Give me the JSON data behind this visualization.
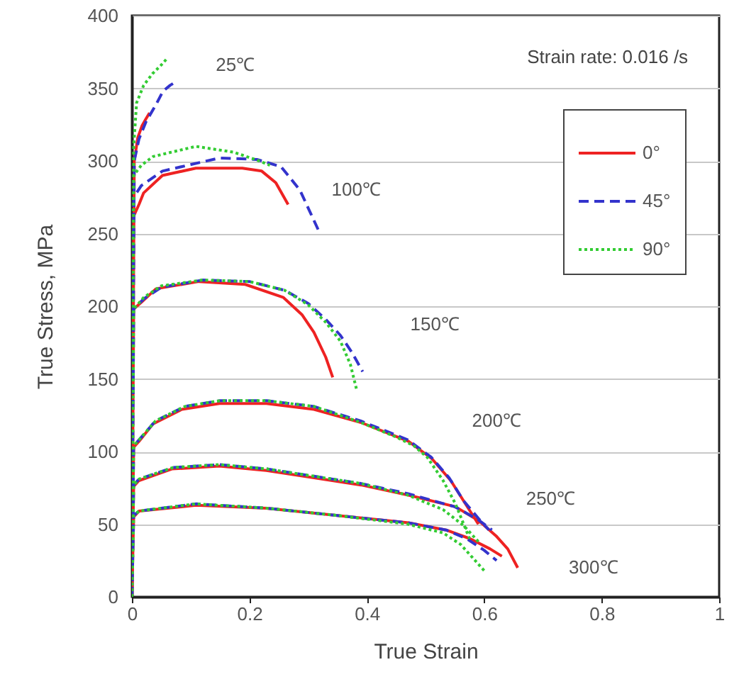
{
  "chart_data": {
    "type": "line",
    "xlabel": "True Strain",
    "ylabel": "True Stress, MPa",
    "xlim": [
      0,
      1
    ],
    "ylim": [
      0,
      400
    ],
    "xticks": [
      0,
      0.2,
      0.4,
      0.6,
      0.8,
      1
    ],
    "yticks": [
      0,
      50,
      100,
      150,
      200,
      250,
      300,
      350,
      400
    ],
    "grid": "y",
    "legend": "top right",
    "annotations": [
      "Strain rate: 0.016 /s",
      "25℃",
      "100℃",
      "150℃",
      "200℃",
      "250℃",
      "300℃"
    ],
    "series": [
      {
        "name": "0°",
        "color": "#ee2222",
        "line_style": "solid",
        "x": [
          0,
          0.004,
          0.01,
          0.017,
          0.024,
          0.03,
          null,
          0,
          0.003,
          0.012,
          0.02,
          0.052,
          0.109,
          0.188,
          0.221,
          0.245,
          0.266,
          null,
          0,
          0.003,
          0.017,
          0.041,
          0.114,
          0.193,
          0.258,
          0.29,
          0.31,
          0.33,
          0.342,
          null,
          0,
          0.003,
          0.012,
          0.036,
          0.085,
          0.149,
          0.229,
          0.31,
          0.39,
          0.471,
          0.511,
          0.543,
          0.568,
          0.59,
          null,
          0,
          0.003,
          0.012,
          0.068,
          0.149,
          0.229,
          0.31,
          0.39,
          0.471,
          0.551,
          0.592,
          0.62,
          0.64,
          0.657,
          null,
          0,
          0.003,
          0.012,
          0.109,
          0.229,
          0.35,
          0.471,
          0.535,
          0.576,
          0.61,
          0.63
        ],
        "values": [
          0,
          300,
          316,
          324,
          329,
          333,
          null,
          0,
          262,
          270,
          278,
          290,
          295,
          295,
          293,
          285,
          270,
          null,
          0,
          198,
          203,
          212,
          217,
          215,
          206,
          194,
          182,
          165,
          151,
          null,
          0,
          103,
          107,
          119,
          129,
          133,
          133,
          129,
          120,
          107,
          95,
          80,
          64,
          50,
          null,
          0,
          76,
          80,
          88,
          90,
          87,
          82,
          77,
          70,
          62,
          52,
          42,
          33,
          20,
          null,
          0,
          55,
          59,
          63,
          61,
          56,
          51,
          46,
          40,
          33,
          28
        ]
      },
      {
        "name": "45°",
        "color": "#3333cc",
        "line_style": "dashed",
        "x": [
          0,
          0.004,
          0.012,
          0.024,
          0.04,
          0.053,
          0.065,
          0.077,
          null,
          0,
          0.003,
          0.016,
          0.052,
          0.149,
          0.213,
          0.254,
          0.286,
          0.318,
          null,
          0,
          0.003,
          0.02,
          0.05,
          0.12,
          0.2,
          0.26,
          0.3,
          0.33,
          0.355,
          0.375,
          0.393,
          null,
          0,
          0.003,
          0.012,
          0.04,
          0.09,
          0.15,
          0.23,
          0.31,
          0.39,
          0.47,
          0.51,
          0.54,
          0.565,
          0.59,
          0.608,
          null,
          0,
          0.003,
          0.012,
          0.07,
          0.15,
          0.23,
          0.31,
          0.39,
          0.47,
          0.55,
          0.59,
          0.613,
          null,
          0,
          0.003,
          0.012,
          0.11,
          0.23,
          0.35,
          0.47,
          0.535,
          0.57,
          0.6,
          0.621
        ],
        "values": [
          0,
          300,
          315,
          327,
          338,
          348,
          352,
          355,
          null,
          0,
          275,
          283,
          293,
          302,
          301,
          296,
          280,
          252,
          null,
          0,
          198,
          205,
          213,
          218,
          217,
          211,
          202,
          191,
          180,
          168,
          155,
          null,
          0,
          104,
          108,
          121,
          131,
          135,
          135,
          131,
          121,
          108,
          96,
          82,
          66,
          54,
          46,
          null,
          0,
          77,
          81,
          89,
          91,
          88,
          83,
          78,
          71,
          62,
          53,
          46,
          null,
          0,
          56,
          59,
          64,
          61,
          56,
          51,
          46,
          40,
          32,
          25
        ]
      },
      {
        "name": "90°",
        "color": "#33cc33",
        "line_style": "dotted",
        "x": [
          0,
          0.003,
          0.008,
          0.02,
          0.035,
          0.05,
          0.061,
          null,
          0,
          0.003,
          0.016,
          0.036,
          0.109,
          0.173,
          0.21,
          0.235,
          null,
          0,
          0.003,
          0.02,
          0.05,
          0.12,
          0.2,
          0.26,
          0.3,
          0.33,
          0.355,
          0.372,
          0.383,
          null,
          0,
          0.003,
          0.012,
          0.04,
          0.09,
          0.15,
          0.23,
          0.31,
          0.39,
          0.45,
          0.48,
          0.503,
          0.53,
          0.551,
          0.575,
          null,
          0,
          0.003,
          0.012,
          0.07,
          0.15,
          0.23,
          0.31,
          0.39,
          0.47,
          0.53,
          0.565,
          0.59,
          null,
          0,
          0.003,
          0.012,
          0.11,
          0.23,
          0.35,
          0.47,
          0.53,
          0.56,
          0.58,
          0.6
        ],
        "values": [
          0,
          310,
          340,
          352,
          360,
          366,
          371,
          null,
          0,
          290,
          297,
          303,
          310,
          306,
          301,
          297,
          null,
          0,
          198,
          206,
          214,
          218,
          217,
          211,
          201,
          189,
          176,
          160,
          142,
          null,
          0,
          104,
          108,
          121,
          131,
          135,
          135,
          131,
          120,
          110,
          104,
          96,
          80,
          64,
          40,
          null,
          0,
          77,
          81,
          89,
          91,
          88,
          83,
          78,
          70,
          60,
          49,
          38,
          null,
          0,
          56,
          59,
          64,
          61,
          56,
          50,
          44,
          36,
          27,
          18
        ]
      }
    ]
  }
}
